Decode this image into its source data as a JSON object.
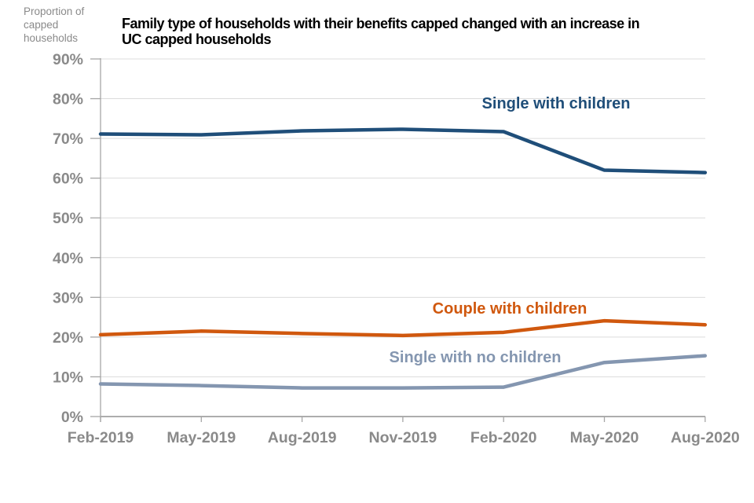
{
  "page": {
    "background": "#ffffff"
  },
  "chart_data": {
    "type": "line",
    "title": "Family type of households with their benefits capped changed with an increase in UC capped households",
    "title_lines": [
      "Family type of households with their benefits capped changed with an increase in",
      "UC capped households"
    ],
    "y_axis_title": "Proportion of capped households",
    "y_axis_title_lines": [
      "Proportion of",
      "capped",
      "households"
    ],
    "categories": [
      "Feb-2019",
      "May-2019",
      "Aug-2019",
      "Nov-2019",
      "Feb-2020",
      "May-2020",
      "Aug-2020"
    ],
    "y_tick_labels": [
      "0%",
      "10%",
      "20%",
      "30%",
      "40%",
      "50%",
      "60%",
      "70%",
      "80%",
      "90%"
    ],
    "ylim": [
      0,
      90
    ],
    "y_tick_step": 10,
    "grid": "horizontal",
    "legend": "direct-series-labels",
    "series": [
      {
        "name": "Single with children",
        "color": "#1F4E79",
        "values": [
          71.1,
          70.9,
          71.9,
          72.3,
          71.7,
          62.0,
          61.4
        ]
      },
      {
        "name": "Couple with children",
        "color": "#D0580E",
        "values": [
          20.6,
          21.5,
          20.9,
          20.4,
          21.2,
          24.1,
          23.1
        ]
      },
      {
        "name": "Single with no children",
        "color": "#8496B0",
        "values": [
          8.2,
          7.8,
          7.2,
          7.2,
          7.4,
          13.6,
          15.3
        ]
      }
    ],
    "colors": {
      "gridline": "#DCDCDC",
      "axis_line": "#A6A6A6",
      "x_axis_line": "#ADADAD",
      "tick_label": "#8A8A8A",
      "title_text": "#000000",
      "axis_title_text": "#8A8A8A"
    }
  }
}
